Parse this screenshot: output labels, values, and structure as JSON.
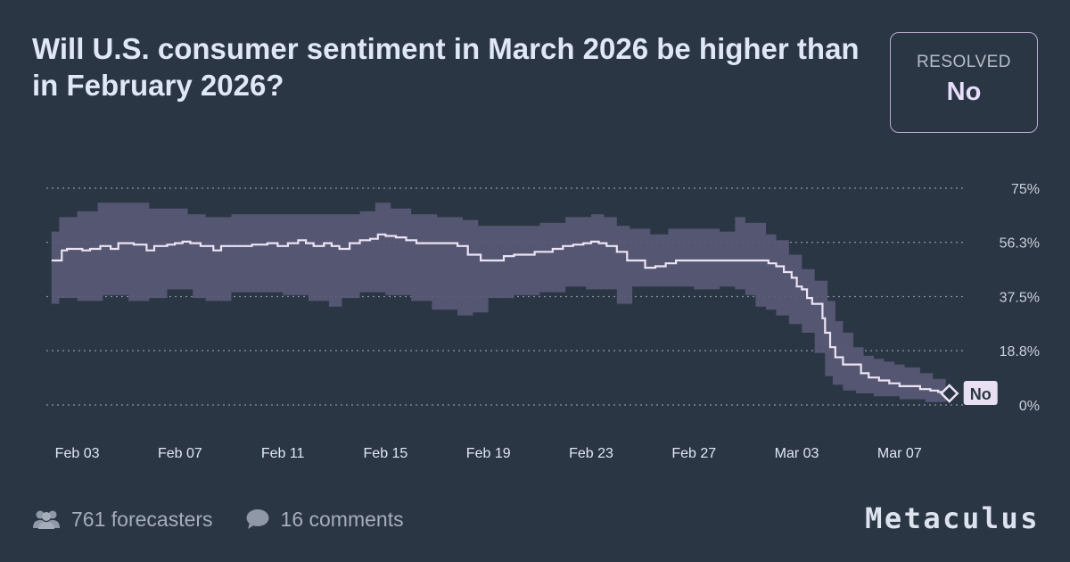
{
  "question": {
    "title": "Will U.S. consumer sentiment in March 2026 be higher than in February 2026?"
  },
  "resolution": {
    "label": "RESOLVED",
    "value": "No"
  },
  "footer": {
    "forecasters": "761 forecasters",
    "comments": "16 comments",
    "brand": "Metaculus"
  },
  "colors": {
    "background": "#2b3645",
    "band": "#5a5a77",
    "line": "#ece4f5",
    "grid": "#8a93a3",
    "label_bg": "#e8e0f2"
  },
  "icons": {
    "forecasters": "people-icon",
    "comments": "speech-bubble-icon",
    "final": "diamond-marker-icon"
  },
  "chart_data": {
    "type": "line",
    "y_unit": "%",
    "ylim": [
      0,
      75
    ],
    "y_ticks": [
      {
        "value": 75,
        "label": "75%"
      },
      {
        "value": 56.3,
        "label": "56.3%"
      },
      {
        "value": 37.5,
        "label": "37.5%"
      },
      {
        "value": 18.8,
        "label": "18.8%"
      },
      {
        "value": 0,
        "label": "0%"
      }
    ],
    "x_ticks": [
      {
        "day": 3,
        "label": "Feb 03"
      },
      {
        "day": 7,
        "label": "Feb 07"
      },
      {
        "day": 11,
        "label": "Feb 11"
      },
      {
        "day": 15,
        "label": "Feb 15"
      },
      {
        "day": 19,
        "label": "Feb 19"
      },
      {
        "day": 23,
        "label": "Feb 23"
      },
      {
        "day": 27,
        "label": "Feb 27"
      },
      {
        "day": 31,
        "label": "Mar 03"
      },
      {
        "day": 35,
        "label": "Mar 07"
      }
    ],
    "grid": true,
    "series": [
      {
        "points": [
          [
            2.0,
            50
          ],
          [
            2.3,
            50
          ],
          [
            2.4,
            53.5
          ],
          [
            2.6,
            54
          ],
          [
            3.2,
            53.5
          ],
          [
            3.5,
            54
          ],
          [
            3.9,
            55
          ],
          [
            4.2,
            55
          ],
          [
            4.3,
            54
          ],
          [
            4.6,
            56
          ],
          [
            5.2,
            55.5
          ],
          [
            5.6,
            55.5
          ],
          [
            5.7,
            53.5
          ],
          [
            6.0,
            55
          ],
          [
            6.5,
            55.5
          ],
          [
            6.8,
            56
          ],
          [
            7.1,
            56.5
          ],
          [
            7.4,
            56
          ],
          [
            7.8,
            55
          ],
          [
            8.2,
            55
          ],
          [
            8.3,
            53.5
          ],
          [
            8.6,
            55
          ],
          [
            9.2,
            55
          ],
          [
            9.8,
            55.5
          ],
          [
            10.4,
            56
          ],
          [
            10.8,
            55
          ],
          [
            11.2,
            56
          ],
          [
            11.6,
            57
          ],
          [
            11.9,
            56
          ],
          [
            12.2,
            55
          ],
          [
            12.6,
            56
          ],
          [
            12.9,
            55
          ],
          [
            13.2,
            54
          ],
          [
            13.6,
            56
          ],
          [
            14.0,
            57
          ],
          [
            14.4,
            57.5
          ],
          [
            14.7,
            59
          ],
          [
            15.0,
            58.5
          ],
          [
            15.4,
            58
          ],
          [
            15.8,
            57
          ],
          [
            16.2,
            56
          ],
          [
            16.8,
            56
          ],
          [
            17.5,
            56
          ],
          [
            17.8,
            55
          ],
          [
            18.2,
            52
          ],
          [
            18.7,
            50
          ],
          [
            19.2,
            50
          ],
          [
            19.6,
            51.5
          ],
          [
            20.0,
            52
          ],
          [
            20.4,
            52
          ],
          [
            20.8,
            53
          ],
          [
            21.2,
            53
          ],
          [
            21.5,
            54
          ],
          [
            21.9,
            55
          ],
          [
            22.3,
            55.5
          ],
          [
            22.7,
            56
          ],
          [
            23.0,
            56.5
          ],
          [
            23.3,
            56
          ],
          [
            23.6,
            55
          ],
          [
            24.0,
            53
          ],
          [
            24.4,
            50
          ],
          [
            24.8,
            50
          ],
          [
            25.1,
            47.5
          ],
          [
            25.5,
            48
          ],
          [
            25.9,
            49
          ],
          [
            26.3,
            50
          ],
          [
            27.0,
            50
          ],
          [
            28.0,
            50
          ],
          [
            29.0,
            50
          ],
          [
            29.6,
            50
          ],
          [
            29.9,
            49
          ],
          [
            30.2,
            48
          ],
          [
            30.5,
            46
          ],
          [
            30.8,
            44
          ],
          [
            31.0,
            41
          ],
          [
            31.2,
            40
          ],
          [
            31.4,
            37
          ],
          [
            31.6,
            35
          ],
          [
            31.8,
            35
          ],
          [
            32.0,
            30
          ],
          [
            32.1,
            25
          ],
          [
            32.3,
            20
          ],
          [
            32.5,
            16.5
          ],
          [
            32.8,
            14
          ],
          [
            33.2,
            14
          ],
          [
            33.5,
            11
          ],
          [
            33.8,
            9.5
          ],
          [
            34.2,
            8.5
          ],
          [
            34.6,
            7.5
          ],
          [
            35.0,
            6.5
          ],
          [
            35.4,
            6.5
          ],
          [
            35.8,
            5.5
          ],
          [
            36.2,
            5
          ],
          [
            36.5,
            4.5
          ],
          [
            36.8,
            4
          ]
        ],
        "upper": [
          [
            2.0,
            60
          ],
          [
            2.3,
            65
          ],
          [
            3.0,
            67
          ],
          [
            3.8,
            70
          ],
          [
            5.0,
            70
          ],
          [
            5.8,
            68
          ],
          [
            6.5,
            68
          ],
          [
            7.3,
            66
          ],
          [
            8.0,
            65
          ],
          [
            9.0,
            66
          ],
          [
            10.0,
            66
          ],
          [
            11.0,
            66
          ],
          [
            12.0,
            66
          ],
          [
            13.0,
            66
          ],
          [
            14.0,
            67
          ],
          [
            14.6,
            70
          ],
          [
            15.2,
            68
          ],
          [
            16.0,
            66
          ],
          [
            17.0,
            65
          ],
          [
            18.0,
            64
          ],
          [
            18.6,
            62
          ],
          [
            19.4,
            62
          ],
          [
            20.0,
            62
          ],
          [
            21.0,
            63
          ],
          [
            22.0,
            65
          ],
          [
            23.0,
            66
          ],
          [
            23.5,
            65
          ],
          [
            24.0,
            62
          ],
          [
            24.5,
            61
          ],
          [
            25.3,
            59
          ],
          [
            26.0,
            61
          ],
          [
            27.0,
            61
          ],
          [
            28.0,
            60
          ],
          [
            28.6,
            65
          ],
          [
            29.0,
            63
          ],
          [
            29.8,
            59
          ],
          [
            30.2,
            57
          ],
          [
            30.7,
            52
          ],
          [
            31.2,
            47
          ],
          [
            31.7,
            43
          ],
          [
            32.2,
            36
          ],
          [
            32.5,
            29
          ],
          [
            32.8,
            25
          ],
          [
            33.2,
            20
          ],
          [
            33.6,
            17
          ],
          [
            34.0,
            16
          ],
          [
            34.4,
            15
          ],
          [
            34.8,
            14
          ],
          [
            35.2,
            13
          ],
          [
            35.8,
            11
          ],
          [
            36.3,
            9
          ],
          [
            36.8,
            7
          ]
        ],
        "lower": [
          [
            2.0,
            35
          ],
          [
            2.3,
            35
          ],
          [
            3.0,
            37
          ],
          [
            4.0,
            36
          ],
          [
            5.0,
            38
          ],
          [
            5.8,
            36
          ],
          [
            6.5,
            37
          ],
          [
            7.5,
            40
          ],
          [
            8.0,
            37
          ],
          [
            9.0,
            36
          ],
          [
            10.0,
            39
          ],
          [
            11.0,
            39
          ],
          [
            12.0,
            38
          ],
          [
            12.8,
            36
          ],
          [
            13.3,
            34
          ],
          [
            14.0,
            37
          ],
          [
            15.0,
            39
          ],
          [
            16.0,
            38
          ],
          [
            16.8,
            36
          ],
          [
            17.8,
            33
          ],
          [
            18.4,
            31
          ],
          [
            19.0,
            32
          ],
          [
            20.0,
            37
          ],
          [
            21.0,
            38
          ],
          [
            22.0,
            39
          ],
          [
            22.8,
            41
          ],
          [
            23.5,
            40
          ],
          [
            24.0,
            40
          ],
          [
            24.6,
            35
          ],
          [
            25.3,
            41
          ],
          [
            26.0,
            41
          ],
          [
            27.0,
            41
          ],
          [
            28.0,
            40
          ],
          [
            28.6,
            41
          ],
          [
            29.0,
            40
          ],
          [
            29.4,
            38
          ],
          [
            29.8,
            34
          ],
          [
            30.2,
            33
          ],
          [
            30.7,
            31
          ],
          [
            31.2,
            28
          ],
          [
            31.7,
            25
          ],
          [
            32.1,
            18
          ],
          [
            32.4,
            10
          ],
          [
            32.8,
            7
          ],
          [
            33.3,
            5
          ],
          [
            34.0,
            4
          ],
          [
            35.0,
            3
          ],
          [
            36.0,
            2
          ],
          [
            36.8,
            1
          ]
        ]
      }
    ],
    "final_value_label": "No"
  }
}
